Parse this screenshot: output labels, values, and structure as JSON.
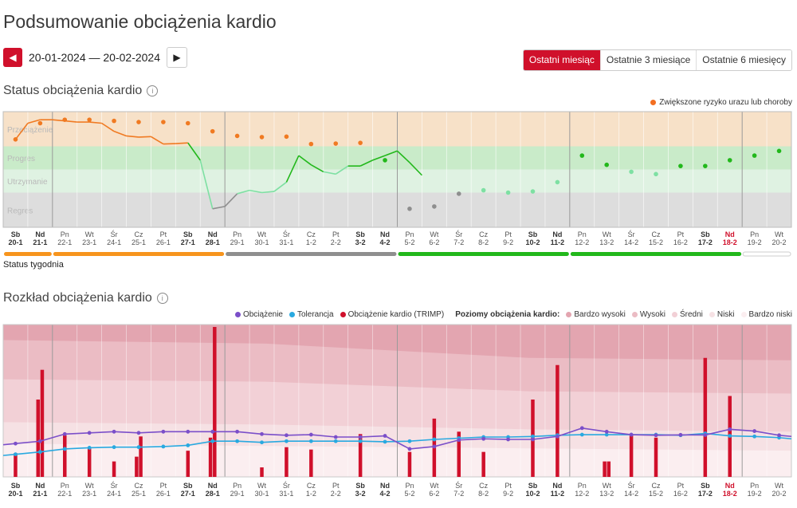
{
  "page_title": "Podsumowanie obciążenia kardio",
  "nav": {
    "prev_icon": "◀",
    "date_range": "20-01-2024 — 20-02-2024",
    "next_icon": "▶"
  },
  "range_tabs": [
    {
      "label": "Ostatni miesiąc",
      "active": true
    },
    {
      "label": "Ostatnie 3 miesiące",
      "active": false
    },
    {
      "label": "Ostatnie 6 miesięcy",
      "active": false
    }
  ],
  "status_section": {
    "title": "Status obciążenia kardio",
    "info_icon": "i",
    "legend_risk": "Zwiększone ryzyko urazu lub choroby",
    "zones": [
      "Przeciążenie",
      "Progres",
      "Utrzymanie",
      "Regres"
    ],
    "week_status_label": "Status tygodnia",
    "status_values": [
      1.3,
      2.0,
      2.15,
      2.15,
      2.1,
      2.05,
      2.05,
      2.0,
      1.65,
      1.45,
      1.4,
      1.42,
      1.1,
      1.12,
      1.15,
      0.4,
      -1.7,
      -1.6,
      -1.05,
      -0.9,
      -1.0,
      -0.95,
      -0.55,
      0.6,
      0.2,
      -0.1,
      -0.2,
      0.15,
      0.15,
      0.4,
      0.6,
      0.8,
      0.3,
      -0.25
    ],
    "week_bars": [
      {
        "status": "overload",
        "color": "#f7941d"
      },
      {
        "status": "overload",
        "color": "#f7941d"
      },
      {
        "status": "regres",
        "color": "#8e8e8e"
      },
      {
        "status": "progres",
        "color": "#22b81b"
      },
      {
        "status": "progres",
        "color": "#22b81b"
      },
      {
        "status": "none",
        "color": "#ffffff"
      }
    ]
  },
  "days": [
    {
      "d": "Sb",
      "n": "20-1",
      "bold": true
    },
    {
      "d": "Nd",
      "n": "21-1",
      "bold": true
    },
    {
      "d": "Pn",
      "n": "22-1"
    },
    {
      "d": "Wt",
      "n": "23-1"
    },
    {
      "d": "Śr",
      "n": "24-1"
    },
    {
      "d": "Cz",
      "n": "25-1"
    },
    {
      "d": "Pt",
      "n": "26-1"
    },
    {
      "d": "Sb",
      "n": "27-1",
      "bold": true
    },
    {
      "d": "Nd",
      "n": "28-1",
      "bold": true
    },
    {
      "d": "Pn",
      "n": "29-1"
    },
    {
      "d": "Wt",
      "n": "30-1"
    },
    {
      "d": "Śr",
      "n": "31-1"
    },
    {
      "d": "Cz",
      "n": "1-2"
    },
    {
      "d": "Pt",
      "n": "2-2"
    },
    {
      "d": "Sb",
      "n": "3-2",
      "bold": true
    },
    {
      "d": "Nd",
      "n": "4-2",
      "bold": true
    },
    {
      "d": "Pn",
      "n": "5-2"
    },
    {
      "d": "Wt",
      "n": "6-2"
    },
    {
      "d": "Śr",
      "n": "7-2"
    },
    {
      "d": "Cz",
      "n": "8-2"
    },
    {
      "d": "Pt",
      "n": "9-2"
    },
    {
      "d": "Sb",
      "n": "10-2",
      "bold": true
    },
    {
      "d": "Nd",
      "n": "11-2",
      "bold": true
    },
    {
      "d": "Pn",
      "n": "12-2"
    },
    {
      "d": "Wt",
      "n": "13-2"
    },
    {
      "d": "Śr",
      "n": "14-2"
    },
    {
      "d": "Cz",
      "n": "15-2"
    },
    {
      "d": "Pt",
      "n": "16-2"
    },
    {
      "d": "Sb",
      "n": "17-2",
      "bold": true
    },
    {
      "d": "Nd",
      "n": "18-2",
      "bold": true,
      "today": true
    },
    {
      "d": "Pn",
      "n": "19-2"
    },
    {
      "d": "Wt",
      "n": "20-2"
    }
  ],
  "distribution_section": {
    "title": "Rozkład obciążenia kardio",
    "info_icon": "i",
    "legend": {
      "load": "Obciążenie",
      "tolerance": "Tolerancja",
      "trimp": "Obciążenie kardio (TRIMP)",
      "levels_title": "Poziomy obciążenia kardio:",
      "levels": [
        "Bardzo wysoki",
        "Wysoki",
        "Średni",
        "Niski",
        "Bardzo niski"
      ]
    },
    "colors": {
      "load": "#7b4fc9",
      "tolerance": "#29a9e0",
      "trimp": "#d0102b",
      "level_very_high": "#e3a5b0",
      "level_high": "#ebbcc4",
      "level_medium": "#f2d0d6",
      "level_low": "#f6e1e4",
      "level_very_low": "#fbeef0"
    },
    "load_values": [
      28,
      30,
      36,
      37,
      38,
      37,
      38,
      38,
      38,
      38,
      36,
      35,
      35.5,
      33.5,
      33.5,
      34.5,
      23.5,
      25.5,
      31,
      32,
      31.5,
      31.5,
      34,
      41,
      38,
      35.5,
      35,
      35.3,
      35.2,
      40,
      38.5,
      35
    ],
    "tolerance_values": [
      19,
      21,
      23.5,
      24.5,
      25,
      25,
      25.5,
      26.5,
      30,
      30,
      29,
      30,
      30,
      30,
      30,
      29.5,
      30,
      31.5,
      32.5,
      33.5,
      33.5,
      34,
      35,
      35.5,
      35.5,
      35.5,
      35.5,
      35,
      36.5,
      34.5,
      34,
      33
    ],
    "trimp_bars": [
      [
        {
          "offset": 0,
          "value": 20
        }
      ],
      [
        {
          "offset": 0,
          "value": 65
        },
        {
          "offset": 1,
          "value": 90
        }
      ],
      [
        {
          "offset": 0,
          "value": 35
        }
      ],
      [
        {
          "offset": 0,
          "value": 25
        }
      ],
      [
        {
          "offset": 0,
          "value": 13
        }
      ],
      [
        {
          "offset": 0,
          "value": 17
        },
        {
          "offset": 1,
          "value": 34
        }
      ],
      [],
      [
        {
          "offset": 0,
          "value": 22
        }
      ],
      [
        {
          "offset": 0,
          "value": 33
        },
        {
          "offset": 1,
          "value": 126
        }
      ],
      [],
      [
        {
          "offset": 0,
          "value": 8
        }
      ],
      [
        {
          "offset": 0,
          "value": 25
        }
      ],
      [
        {
          "offset": 0,
          "value": 23
        }
      ],
      [],
      [
        {
          "offset": 0,
          "value": 36
        }
      ],
      [],
      [
        {
          "offset": 0,
          "value": 21
        }
      ],
      [
        {
          "offset": 0,
          "value": 49
        }
      ],
      [
        {
          "offset": 0,
          "value": 38
        }
      ],
      [
        {
          "offset": 0,
          "value": 21
        }
      ],
      [],
      [
        {
          "offset": 0,
          "value": 65
        }
      ],
      [
        {
          "offset": 0,
          "value": 94
        }
      ],
      [],
      [
        {
          "offset": 0,
          "value": 13
        },
        {
          "offset": 1,
          "value": 13
        }
      ],
      [
        {
          "offset": 0,
          "value": 35
        }
      ],
      [
        {
          "offset": 0,
          "value": 33
        }
      ],
      [],
      [
        {
          "offset": 0,
          "value": 100
        }
      ],
      [
        {
          "offset": 0,
          "value": 68
        }
      ],
      [],
      []
    ]
  }
}
